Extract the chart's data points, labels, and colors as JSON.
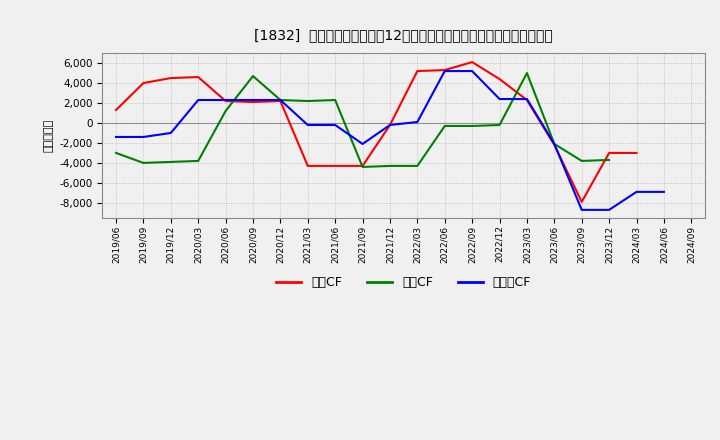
{
  "title": "[1832]  キャッシュフローの12か月移動合計の対前年同期増減額の推移",
  "ylabel": "（百万円）",
  "x_labels": [
    "2019/06",
    "2019/09",
    "2019/12",
    "2020/03",
    "2020/06",
    "2020/09",
    "2020/12",
    "2021/03",
    "2021/06",
    "2021/09",
    "2021/12",
    "2022/03",
    "2022/06",
    "2022/09",
    "2022/12",
    "2023/03",
    "2023/06",
    "2023/09",
    "2023/12",
    "2024/03",
    "2024/06",
    "2024/09"
  ],
  "eigyo_cf": [
    1300,
    4000,
    4500,
    4600,
    2200,
    2100,
    2200,
    -4300,
    -4300,
    -4300,
    -200,
    5200,
    5300,
    6100,
    4400,
    2300,
    -2200,
    -7900,
    -3000,
    -3000,
    null,
    null
  ],
  "toshi_cf": [
    -3000,
    -4000,
    -3900,
    -3800,
    1200,
    4700,
    2300,
    2200,
    2300,
    -4400,
    -4300,
    -4300,
    -300,
    -300,
    -200,
    5000,
    -2100,
    -3800,
    -3700,
    null,
    null,
    null
  ],
  "free_cf": [
    -1400,
    -1400,
    -1000,
    2300,
    2300,
    2300,
    2300,
    -200,
    -200,
    -2100,
    -200,
    100,
    5200,
    5200,
    2400,
    2400,
    -2100,
    -8700,
    -8700,
    -6900,
    -6900,
    null
  ],
  "eigyo_color": "#ff0000",
  "toshi_color": "#008000",
  "free_color": "#0000ff",
  "ylim": [
    -9500,
    7000
  ],
  "yticks": [
    -8000,
    -6000,
    -4000,
    -2000,
    0,
    2000,
    4000,
    6000
  ],
  "background_color": "#f0f0f0",
  "grid_color": "#aaaaaa",
  "legend_eigyo": "営業CF",
  "legend_toshi": "投資CF",
  "legend_free": "フリーCF"
}
